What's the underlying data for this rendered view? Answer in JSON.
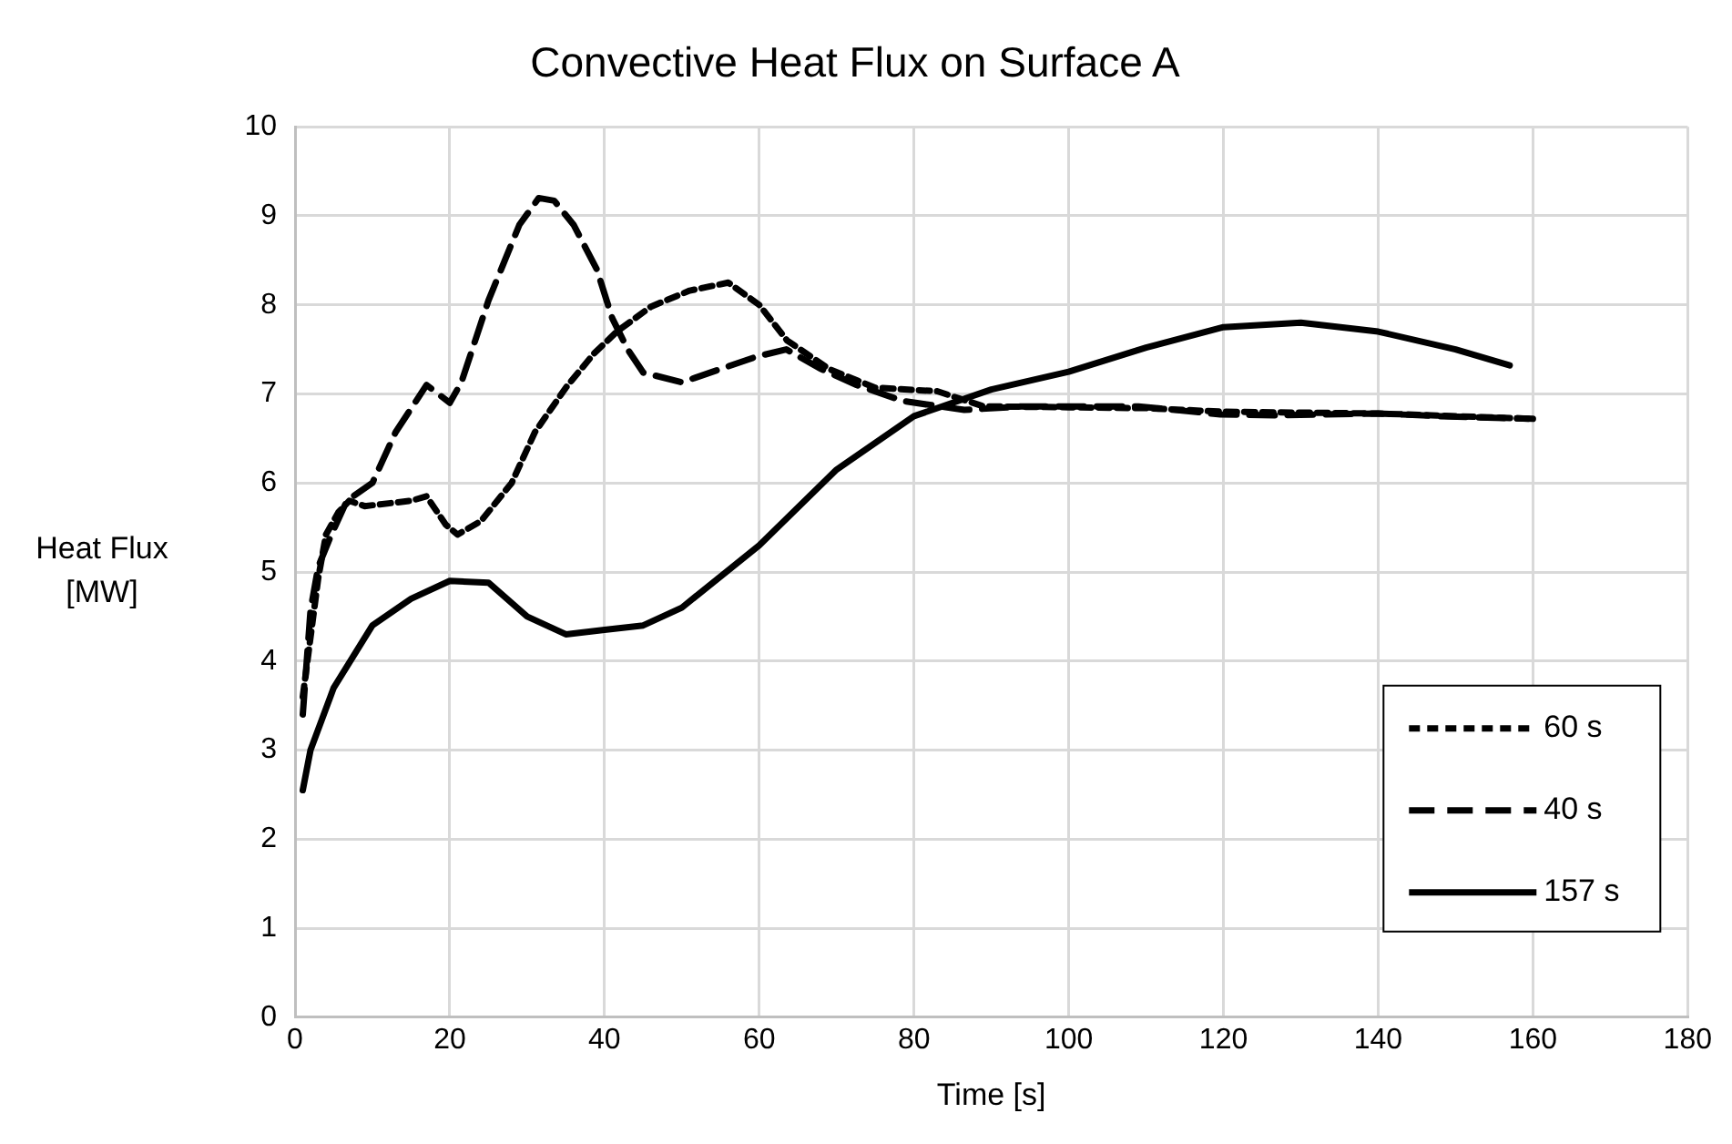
{
  "chart_data": {
    "type": "line",
    "title": "Convective Heat Flux on Surface A",
    "xlabel": "Time [s]",
    "ylabel": "Heat Flux [MW]",
    "xlim": [
      0,
      180
    ],
    "xticks": [
      0,
      20,
      40,
      60,
      80,
      100,
      120,
      140,
      160,
      180
    ],
    "ylim": [
      0,
      10
    ],
    "yticks": [
      0,
      1,
      2,
      3,
      4,
      5,
      6,
      7,
      8,
      9,
      10
    ],
    "grid": true,
    "legend": "bottom right",
    "marker": "none",
    "series": [
      {
        "name": "60 s",
        "color": "#000000",
        "line_style": "dotted",
        "x": [
          1,
          3,
          4,
          5.6,
          7,
          9,
          15,
          17,
          19.5,
          21,
          24,
          28,
          31,
          35,
          38.6,
          41.6,
          46,
          51,
          56,
          60,
          63.6,
          69,
          75,
          83,
          89,
          100,
          110,
          120,
          140,
          160
        ],
        "values": [
          3.6,
          4.93,
          5.42,
          5.67,
          5.8,
          5.74,
          5.8,
          5.85,
          5.53,
          5.42,
          5.57,
          6.0,
          6.57,
          7.07,
          7.45,
          7.7,
          7.98,
          8.16,
          8.25,
          8.0,
          7.6,
          7.28,
          7.07,
          7.03,
          6.86,
          6.85,
          6.84,
          6.8,
          6.78,
          6.72
        ]
      },
      {
        "name": "40 s",
        "color": "#000000",
        "line_style": "dashed",
        "x": [
          1,
          2,
          3,
          4.6,
          6.7,
          10,
          13,
          17,
          20,
          21.5,
          25,
          29,
          31.5,
          33.5,
          36,
          39,
          41,
          43,
          45,
          50,
          55,
          59.7,
          63.5,
          68,
          72.6,
          78.6,
          86.5,
          94,
          102,
          109,
          119.6,
          127,
          140,
          148,
          160
        ],
        "values": [
          3.4,
          4.57,
          5.06,
          5.4,
          5.8,
          6.0,
          6.57,
          7.1,
          6.9,
          7.13,
          8.05,
          8.9,
          9.2,
          9.17,
          8.9,
          8.4,
          7.85,
          7.5,
          7.24,
          7.13,
          7.28,
          7.42,
          7.5,
          7.28,
          7.1,
          6.92,
          6.82,
          6.86,
          6.86,
          6.86,
          6.77,
          6.76,
          6.78,
          6.75,
          6.72
        ]
      },
      {
        "name": "157 s",
        "color": "#000000",
        "line_style": "solid",
        "x": [
          1,
          2,
          5,
          10,
          15,
          20,
          25,
          30,
          35,
          40,
          45,
          50,
          60,
          70,
          80,
          90,
          100,
          110,
          120,
          130,
          140,
          150,
          157
        ],
        "values": [
          2.55,
          3.0,
          3.7,
          4.4,
          4.7,
          4.9,
          4.88,
          4.5,
          4.3,
          4.35,
          4.4,
          4.6,
          5.3,
          6.15,
          6.75,
          7.05,
          7.25,
          7.52,
          7.75,
          7.8,
          7.7,
          7.5,
          7.32
        ]
      }
    ]
  }
}
